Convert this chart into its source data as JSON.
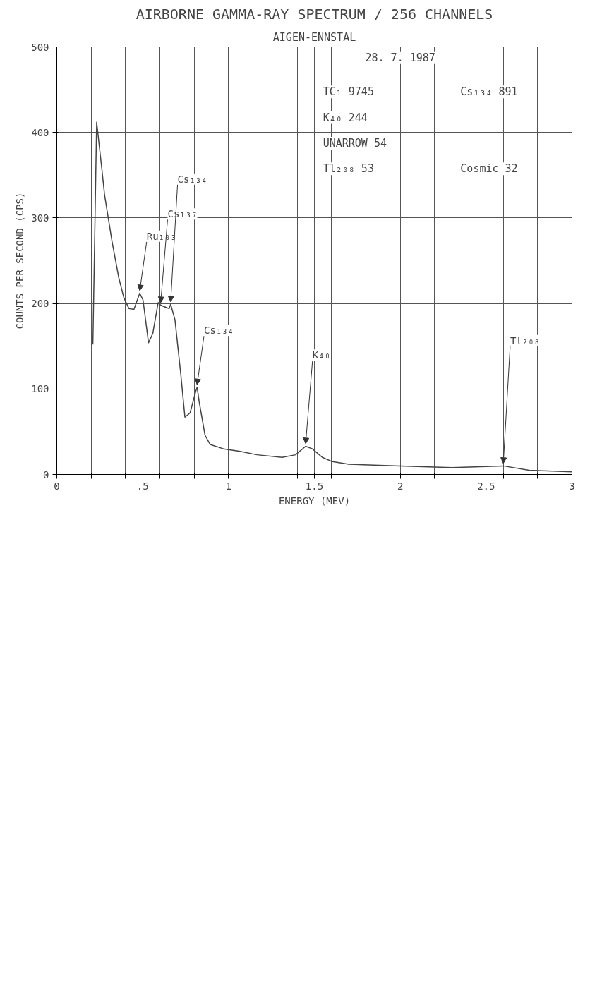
{
  "chart_data": {
    "type": "line",
    "title": "AIRBORNE GAMMA-RAY SPECTRUM / 256 CHANNELS",
    "subtitle": "AIGEN-ENNSTAL",
    "xlabel": "ENERGY (MEV)",
    "ylabel": "COUNTS PER SECOND (CPS)",
    "series": [
      {
        "color": "#444444",
        "x": [
          0.21,
          0.232,
          0.263,
          0.278,
          0.322,
          0.361,
          0.39,
          0.42,
          0.449,
          0.483,
          0.502,
          0.534,
          0.559,
          0.59,
          0.605,
          0.629,
          0.654,
          0.663,
          0.688,
          0.722,
          0.746,
          0.776,
          0.81,
          0.817,
          0.829,
          0.863,
          0.893,
          0.971,
          1.068,
          1.166,
          1.312,
          1.39,
          1.449,
          1.488,
          1.546,
          1.605,
          1.7,
          2.0,
          2.3,
          2.6,
          2.75,
          3.0
        ],
        "values": [
          152,
          412,
          356,
          327,
          272,
          230,
          207,
          194,
          193,
          212,
          204,
          154,
          165,
          201,
          198,
          196,
          194,
          199,
          181,
          117,
          67,
          72,
          98,
          102,
          85,
          46,
          35,
          30,
          27,
          23,
          20,
          23,
          33,
          30,
          20,
          15,
          12,
          10,
          8,
          10,
          5,
          3
        ]
      }
    ],
    "xlim": [
      0,
      3
    ],
    "ylim": [
      0,
      500
    ],
    "xticks": [
      {
        "value": 0,
        "label": "0"
      },
      {
        "value": 0.2,
        "label": null
      },
      {
        "value": 0.4,
        "label": null
      },
      {
        "value": 0.5,
        "label": ".5"
      },
      {
        "value": 0.6,
        "label": null
      },
      {
        "value": 0.8,
        "label": null
      },
      {
        "value": 1,
        "label": "1"
      },
      {
        "value": 1.2,
        "label": null
      },
      {
        "value": 1.4,
        "label": null
      },
      {
        "value": 1.5,
        "label": "1.5"
      },
      {
        "value": 1.6,
        "label": null
      },
      {
        "value": 1.8,
        "label": null
      },
      {
        "value": 2,
        "label": "2"
      },
      {
        "value": 2.2,
        "label": null
      },
      {
        "value": 2.4,
        "label": null
      },
      {
        "value": 2.5,
        "label": "2.5"
      },
      {
        "value": 2.6,
        "label": null
      },
      {
        "value": 2.8,
        "label": null
      },
      {
        "value": 3,
        "label": "3"
      }
    ],
    "yticks": [
      0,
      100,
      200,
      300,
      400,
      500
    ],
    "grid": true,
    "marker": "none",
    "line_style": "solid",
    "annotations": [
      {
        "text": "Ru₁₀₃",
        "x": 0.483,
        "y": 212
      },
      {
        "text": "Cs₁₃₇",
        "x": 0.605,
        "y": 198
      },
      {
        "text": "Cs₁₃₄",
        "x": 0.663,
        "y": 199
      },
      {
        "text": "Cs₁₃₄",
        "x": 0.817,
        "y": 102
      },
      {
        "text": "K₄₀",
        "x": 1.449,
        "y": 33
      },
      {
        "text": "Tl₂₀₈",
        "x": 2.6,
        "y": 10
      },
      "28. 7. 1987",
      "TC₁ 9745",
      "K₄₀ 244",
      "UNARROW 54",
      "Tl₂₀₈ 53",
      "Cs₁₃₄ 891",
      "Cosmic 32"
    ]
  }
}
